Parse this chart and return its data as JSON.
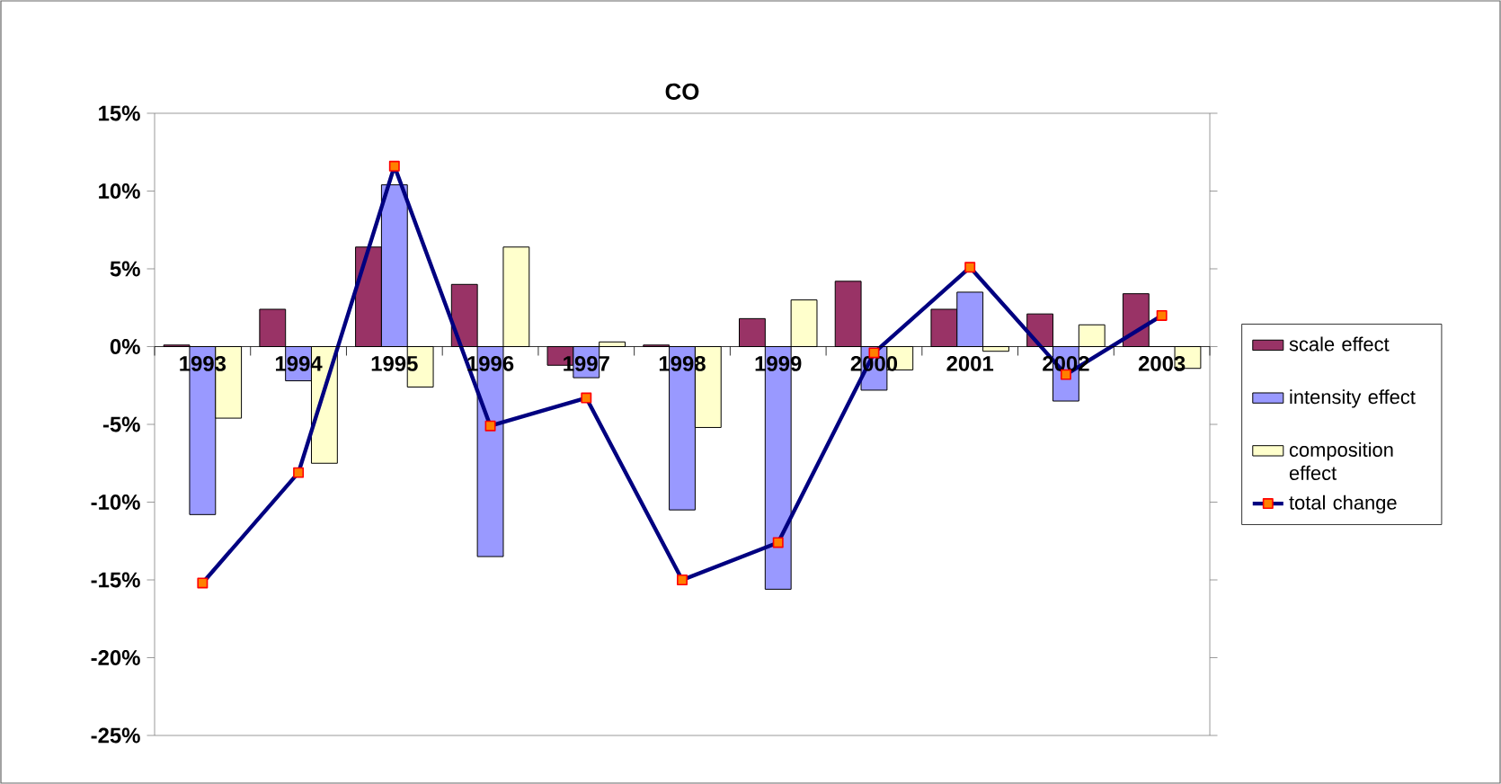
{
  "chart_data": {
    "type": "bar",
    "title": "CO",
    "categories": [
      "1993",
      "1994",
      "1995",
      "1996",
      "1997",
      "1998",
      "1999",
      "2000",
      "2001",
      "2002",
      "2003"
    ],
    "series": [
      {
        "name": "scale effect",
        "color": "#993366",
        "values": [
          0.1,
          2.4,
          6.4,
          4.0,
          -1.2,
          0.1,
          1.8,
          4.2,
          2.4,
          2.1,
          3.4
        ]
      },
      {
        "name": "intensity effect",
        "color": "#9999ff",
        "values": [
          -10.8,
          -2.2,
          10.4,
          -13.5,
          -2.0,
          -10.5,
          -15.6,
          -2.8,
          3.5,
          -3.5,
          0.0
        ]
      },
      {
        "name": "composition effect",
        "color": "#ffffcc",
        "values": [
          -4.6,
          -7.5,
          -2.6,
          6.4,
          0.3,
          -5.2,
          3.0,
          -1.5,
          -0.3,
          1.4,
          -1.4
        ]
      },
      {
        "name": "total change",
        "type": "line",
        "color": "#000080",
        "marker": "square",
        "values": [
          -15.2,
          -8.1,
          11.6,
          -5.1,
          -3.3,
          -15.0,
          -12.6,
          -0.4,
          5.1,
          -1.8,
          2.0
        ]
      }
    ],
    "ylim": [
      -25,
      15
    ],
    "yticks": [
      {
        "value": -25,
        "label": "-25%"
      },
      {
        "value": -20,
        "label": "-20%"
      },
      {
        "value": -15,
        "label": "-15%"
      },
      {
        "value": -10,
        "label": "-10%"
      },
      {
        "value": -5,
        "label": "-5%"
      },
      {
        "value": 0,
        "label": "0%"
      },
      {
        "value": 5,
        "label": "5%"
      },
      {
        "value": 10,
        "label": "10%"
      },
      {
        "value": 15,
        "label": "15%"
      }
    ],
    "legend": "right"
  }
}
